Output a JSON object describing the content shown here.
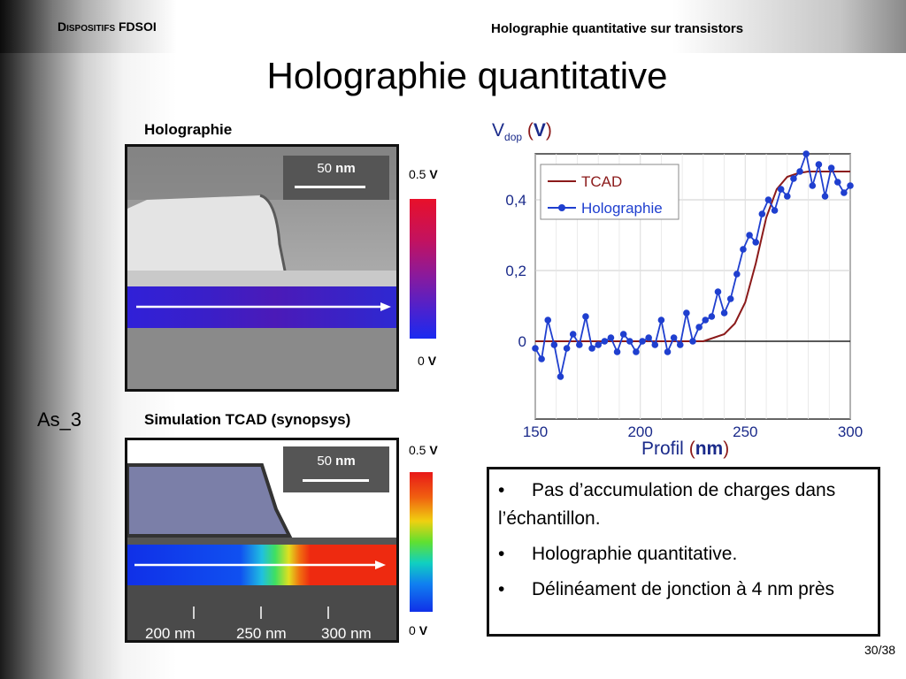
{
  "header": {
    "section": "Dispositifs FDSOI",
    "topic": "Holographie quantitative sur transistors"
  },
  "title": "Holographie quantitative",
  "side_label": "As_3",
  "holography_panel": {
    "title": "Holographie",
    "scale_value": "50",
    "scale_unit": "nm",
    "cbar_max_value": "0.5",
    "cbar_min_value": "0",
    "cbar_unit": "V"
  },
  "tcad_panel": {
    "title": "Simulation TCAD (synopsys)",
    "scale_value": "50",
    "scale_unit": "nm",
    "cbar_max_value": "0.5",
    "cbar_min_value": "0",
    "cbar_unit": "V",
    "ticks": [
      "200 nm",
      "250 nm",
      "300 nm"
    ]
  },
  "chart_data": {
    "type": "line",
    "ylabel_main": "V",
    "ylabel_sub": "dop",
    "ylabel_unit": "V",
    "xlabel_main": "Profil",
    "xlabel_unit": "nm",
    "xlim": [
      150,
      300
    ],
    "ylim": [
      -0.22,
      0.53
    ],
    "xticks": [
      {
        "v": 150,
        "t": "150"
      },
      {
        "v": 200,
        "t": "200"
      },
      {
        "v": 250,
        "t": "250"
      },
      {
        "v": 300,
        "t": "300"
      }
    ],
    "yticks": [
      {
        "v": 0,
        "t": "0"
      },
      {
        "v": 0.2,
        "t": "0,2"
      },
      {
        "v": 0.4,
        "t": "0,4"
      }
    ],
    "legend_position": "top-left",
    "series": [
      {
        "name": "TCAD",
        "color": "#8b1a1a",
        "x": [
          150,
          220,
          230,
          235,
          240,
          245,
          250,
          255,
          260,
          265,
          270,
          275,
          280,
          290,
          300
        ],
        "y": [
          0,
          0,
          0,
          0.01,
          0.02,
          0.05,
          0.11,
          0.22,
          0.35,
          0.43,
          0.465,
          0.475,
          0.48,
          0.48,
          0.48
        ]
      },
      {
        "name": "Holographie",
        "color": "#1f3fcf",
        "x": [
          150,
          153,
          156,
          159,
          162,
          165,
          168,
          171,
          174,
          177,
          180,
          183,
          186,
          189,
          192,
          195,
          198,
          201,
          204,
          207,
          210,
          213,
          216,
          219,
          222,
          225,
          228,
          231,
          234,
          237,
          240,
          243,
          246,
          249,
          252,
          255,
          258,
          261,
          264,
          267,
          270,
          273,
          276,
          279,
          282,
          285,
          288,
          291,
          294,
          297,
          300
        ],
        "y": [
          -0.02,
          -0.05,
          0.06,
          -0.01,
          -0.1,
          -0.02,
          0.02,
          -0.01,
          0.07,
          -0.02,
          -0.01,
          0.0,
          0.01,
          -0.03,
          0.02,
          0.0,
          -0.03,
          0.0,
          0.01,
          -0.01,
          0.06,
          -0.03,
          0.01,
          -0.01,
          0.08,
          0.0,
          0.04,
          0.06,
          0.07,
          0.14,
          0.08,
          0.12,
          0.19,
          0.26,
          0.3,
          0.28,
          0.36,
          0.4,
          0.37,
          0.43,
          0.41,
          0.46,
          0.48,
          0.53,
          0.44,
          0.5,
          0.41,
          0.49,
          0.45,
          0.42,
          0.44
        ]
      }
    ]
  },
  "notes": [
    "Pas d’accumulation de charges dans l’échantillon.",
    "Holographie quantitative.",
    "Délinéament de jonction à 4 nm près"
  ],
  "page": {
    "current": "30",
    "total": "/38"
  }
}
